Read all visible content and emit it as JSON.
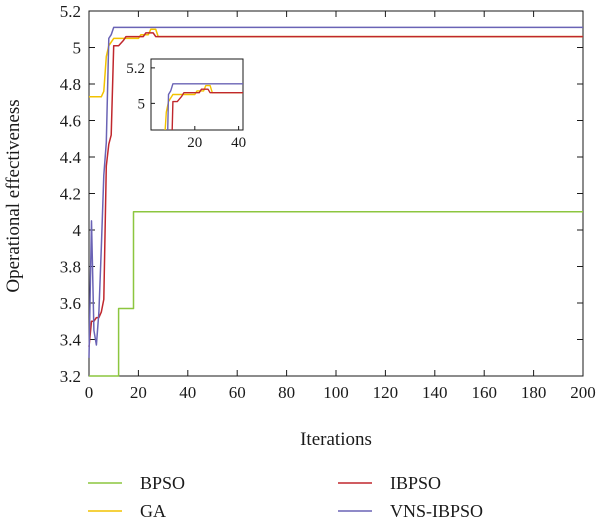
{
  "chart_data": {
    "type": "line",
    "xlabel": "Iterations",
    "ylabel": "Operational effectiveness",
    "xlim": [
      0,
      200
    ],
    "ylim": [
      3.2,
      5.2
    ],
    "xticks": [
      0,
      20,
      40,
      60,
      80,
      100,
      120,
      140,
      160,
      180,
      200
    ],
    "yticks": [
      3.2,
      3.4,
      3.6,
      3.8,
      4,
      4.2,
      4.4,
      4.6,
      4.8,
      5,
      5.2
    ],
    "xtick_labels": [
      "0",
      "20",
      "40",
      "60",
      "80",
      "100",
      "120",
      "140",
      "160",
      "180",
      "200"
    ],
    "ytick_labels": [
      "3.2",
      "3.4",
      "3.6",
      "3.8",
      "4",
      "4.2",
      "4.4",
      "4.6",
      "4.8",
      "5",
      "5.2"
    ],
    "grid": false,
    "legend_position": "bottom",
    "series": [
      {
        "name": "BPSO",
        "color": "#8cc63f",
        "x": [
          0,
          12,
          12,
          15,
          15,
          18,
          18,
          200
        ],
        "y": [
          3.2,
          3.2,
          3.57,
          3.57,
          3.57,
          3.57,
          4.1,
          4.1
        ]
      },
      {
        "name": "GA",
        "color": "#f2c200",
        "x": [
          0,
          5,
          6,
          7,
          8,
          10,
          20,
          21,
          24,
          25,
          27,
          28,
          66,
          200
        ],
        "y": [
          4.73,
          4.73,
          4.76,
          4.95,
          5.01,
          5.05,
          5.05,
          5.07,
          5.07,
          5.1,
          5.1,
          5.06,
          5.06,
          5.06
        ]
      },
      {
        "name": "IBPSO",
        "color": "#c0272d",
        "x": [
          0,
          1,
          2,
          3,
          4,
          5,
          6,
          7,
          8,
          9,
          10,
          12,
          14,
          15,
          16,
          18,
          22,
          23,
          26,
          27,
          66,
          68,
          200
        ],
        "y": [
          3.36,
          3.5,
          3.5,
          3.52,
          3.52,
          3.55,
          3.62,
          4.35,
          4.47,
          4.52,
          5.01,
          5.01,
          5.04,
          5.06,
          5.06,
          5.06,
          5.06,
          5.08,
          5.08,
          5.06,
          5.06,
          5.06,
          5.06
        ]
      },
      {
        "name": "VNS-IBPSO",
        "color": "#6a63b5",
        "x": [
          0,
          1,
          2,
          3,
          4,
          5,
          6,
          7,
          8,
          9,
          10,
          11,
          200
        ],
        "y": [
          3.3,
          4.05,
          3.45,
          3.37,
          3.55,
          3.9,
          4.3,
          4.48,
          5.05,
          5.07,
          5.11,
          5.11,
          5.11
        ]
      }
    ],
    "inset": {
      "xlim": [
        0,
        42
      ],
      "ylim": [
        4.85,
        5.25
      ],
      "xticks": [
        20,
        40
      ],
      "yticks": [
        5,
        5.2
      ],
      "xtick_labels": [
        "20",
        "40"
      ],
      "ytick_labels": [
        "5",
        "5.2"
      ]
    }
  }
}
